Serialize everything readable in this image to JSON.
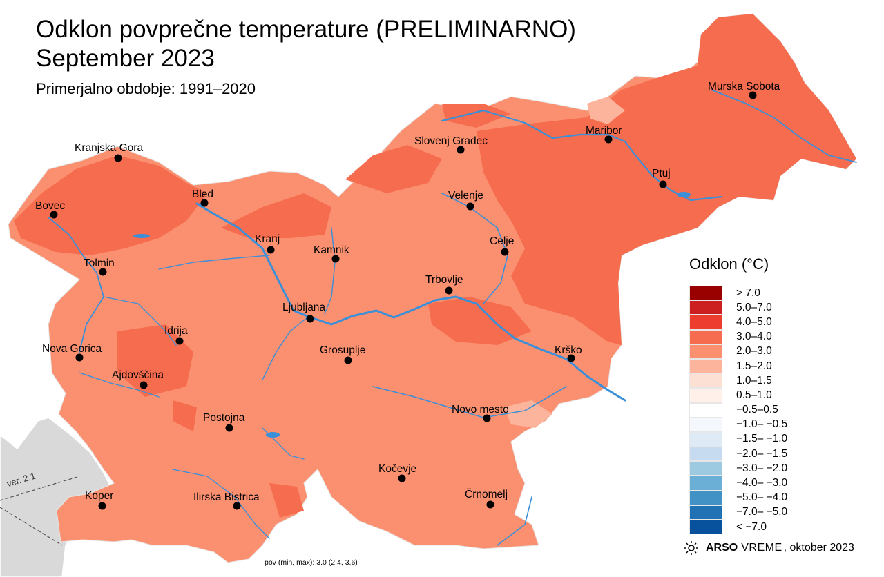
{
  "title_line1": "Odklon povprečne temperature (PRELIMINARNO)",
  "title_line2": "September 2023",
  "subtitle": "Primerjalno obdobje: 1991–2020",
  "legend": {
    "title": "Odklon (°C)",
    "classes": [
      {
        "label": "> 7.0",
        "color": "#990000"
      },
      {
        "label": "5.0–7.0",
        "color": "#cc1f1f"
      },
      {
        "label": "4.0–5.0",
        "color": "#ec3d2f"
      },
      {
        "label": "3.0–4.0",
        "color": "#f56c4e"
      },
      {
        "label": "2.0–3.0",
        "color": "#fb9070"
      },
      {
        "label": "1.5–2.0",
        "color": "#fcb59c"
      },
      {
        "label": "1.0–1.5",
        "color": "#fde0d4"
      },
      {
        "label": "0.5–1.0",
        "color": "#fff0ea"
      },
      {
        "label": "−0.5–0.5",
        "color": "#ffffff"
      },
      {
        "label": "−1.0– −0.5",
        "color": "#f4f8fd"
      },
      {
        "label": "−1.5– −1.0",
        "color": "#deebf7"
      },
      {
        "label": "−2.0– −1.5",
        "color": "#c6dbef"
      },
      {
        "label": "−3.0– −2.0",
        "color": "#9ecae1"
      },
      {
        "label": "−4.0– −3.0",
        "color": "#6baed6"
      },
      {
        "label": "−5.0– −4.0",
        "color": "#4292c6"
      },
      {
        "label": "−7.0– −5.0",
        "color": "#2171b5"
      },
      {
        "label": "< −7.0",
        "color": "#08519c"
      }
    ]
  },
  "cities": [
    {
      "name": "Murska Sobota"
    },
    {
      "name": "Maribor"
    },
    {
      "name": "Slovenj Gradec"
    },
    {
      "name": "Kranjska Gora"
    },
    {
      "name": "Ptuj"
    },
    {
      "name": "Bled"
    },
    {
      "name": "Velenje"
    },
    {
      "name": "Bovec"
    },
    {
      "name": "Kranj"
    },
    {
      "name": "Celje"
    },
    {
      "name": "Kamnik"
    },
    {
      "name": "Tolmin"
    },
    {
      "name": "Trbovlje"
    },
    {
      "name": "Ljubljana"
    },
    {
      "name": "Idrija"
    },
    {
      "name": "Nova Gorica"
    },
    {
      "name": "Grosuplje"
    },
    {
      "name": "Krško"
    },
    {
      "name": "Ajdovščina"
    },
    {
      "name": "Novo mesto"
    },
    {
      "name": "Postojna"
    },
    {
      "name": "Kočevje"
    },
    {
      "name": "Koper"
    },
    {
      "name": "Ilirska Bistrica"
    },
    {
      "name": "Črnomelj"
    }
  ],
  "credit": {
    "icon": "sun-icon",
    "brand": "ARSO",
    "brand2": "VREME",
    "date": ", oktober 2023"
  },
  "footer_note": "pov (min, max): 3.0 (2.4, 3.6)",
  "version": "ver. 2.1",
  "colors": {
    "river": "#3a8fd9",
    "neighbor_fill": "#d9d9d9",
    "base_fill": "#fb9070",
    "warm_fill": "#f56c4e"
  }
}
